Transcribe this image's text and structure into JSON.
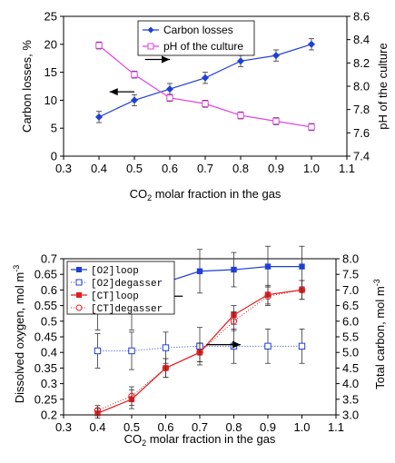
{
  "chart_data": [
    {
      "type": "line",
      "xlabel": "CO2 molar fraction in the gas",
      "ylabel": "Carbon losses, %",
      "y2label": "pH of the culture",
      "xlim": [
        0.3,
        1.1
      ],
      "ylim": [
        0,
        25
      ],
      "y2lim": [
        7.4,
        8.6
      ],
      "xticks": [
        "0.3",
        "0.4",
        "0.5",
        "0.6",
        "0.7",
        "0.8",
        "0.9",
        "1.0",
        "1.1"
      ],
      "yticks": [
        "0",
        "5",
        "10",
        "15",
        "20",
        "25"
      ],
      "y2ticks": [
        "7.4",
        "7.6",
        "7.8",
        "8.0",
        "8.2",
        "8.4",
        "8.6"
      ],
      "legend_position": "top-center",
      "series": [
        {
          "name": "Carbon losses",
          "axis": "left",
          "color": "#1f3fd6",
          "marker": "diamond",
          "x": [
            0.4,
            0.5,
            0.6,
            0.7,
            0.8,
            0.9,
            1.0
          ],
          "y": [
            7,
            10,
            12,
            14,
            17,
            18,
            20
          ],
          "err": [
            1,
            1,
            1,
            1,
            1,
            1,
            1
          ]
        },
        {
          "name": "pH of the culture",
          "axis": "right",
          "color": "#e040e0",
          "marker": "square-open",
          "x": [
            0.4,
            0.5,
            0.6,
            0.7,
            0.8,
            0.9,
            1.0
          ],
          "y": [
            8.35,
            8.1,
            7.9,
            7.85,
            7.75,
            7.7,
            7.65
          ],
          "err": [
            0.03,
            0.03,
            0.03,
            0.03,
            0.03,
            0.03,
            0.03
          ]
        }
      ],
      "arrows": [
        {
          "direction": "right",
          "x_from": 0.53,
          "x_to": 0.6,
          "y2": 8.23
        },
        {
          "direction": "left",
          "x_from": 0.5,
          "x_to": 0.43,
          "y": 11.5
        }
      ]
    },
    {
      "type": "line",
      "xlabel": "CO2 molar fraction in the gas",
      "ylabel": "Dissolved oxygen, mol m-3",
      "y2label": "Total carbon, mol m-3",
      "xlim": [
        0.3,
        1.1
      ],
      "ylim": [
        0.2,
        0.7
      ],
      "y2lim": [
        3.0,
        8.0
      ],
      "xticks": [
        "0.3",
        "0.4",
        "0.5",
        "0.6",
        "0.7",
        "0.8",
        "0.9",
        "1.0",
        "1.1"
      ],
      "yticks": [
        "0.2",
        "0.25",
        "0.3",
        "0.35",
        "0.4",
        "0.45",
        "0.5",
        "0.55",
        "0.6",
        "0.65",
        "0.7"
      ],
      "y2ticks": [
        "3.0",
        "3.5",
        "4.0",
        "4.5",
        "5.0",
        "5.5",
        "6.0",
        "6.5",
        "7.0",
        "7.5",
        "8.0"
      ],
      "legend_position": "top-left",
      "series": [
        {
          "name": "[O2]loop",
          "axis": "left",
          "color": "#1f3fd6",
          "marker": "square",
          "linestyle": "solid",
          "x": [
            0.4,
            0.5,
            0.6,
            0.7,
            0.8,
            0.9,
            1.0
          ],
          "y": [
            0.557,
            0.557,
            0.625,
            0.66,
            0.665,
            0.675,
            0.675
          ],
          "err": [
            0.085,
            0.085,
            0.06,
            0.07,
            0.055,
            0.065,
            0.065
          ]
        },
        {
          "name": "[O2]degasser",
          "axis": "left",
          "color": "#1f3fd6",
          "marker": "square-open",
          "linestyle": "dotted",
          "x": [
            0.4,
            0.5,
            0.6,
            0.7,
            0.8,
            0.9,
            1.0
          ],
          "y": [
            0.405,
            0.405,
            0.415,
            0.42,
            0.42,
            0.42,
            0.42
          ],
          "err": [
            0.055,
            0.06,
            0.05,
            0.06,
            0.055,
            0.055,
            0.055
          ]
        },
        {
          "name": "[CT]loop",
          "axis": "right",
          "color": "#e02020",
          "marker": "square",
          "linestyle": "solid",
          "x": [
            0.4,
            0.5,
            0.6,
            0.7,
            0.8,
            0.9,
            1.0
          ],
          "y": [
            3.05,
            3.5,
            4.5,
            5.0,
            6.2,
            6.85,
            7.0
          ],
          "err": [
            0.15,
            0.3,
            0.3,
            0.3,
            0.3,
            0.3,
            0.3
          ]
        },
        {
          "name": "[CT]degasser",
          "axis": "right",
          "color": "#e02020",
          "marker": "circle-open",
          "linestyle": "dotted",
          "x": [
            0.4,
            0.5,
            0.6,
            0.7,
            0.8,
            0.9,
            1.0
          ],
          "y": [
            3.15,
            3.6,
            4.5,
            5.0,
            6.0,
            6.8,
            7.0
          ],
          "err": [
            0.15,
            0.3,
            0.3,
            0.3,
            0.3,
            0.3,
            0.3
          ]
        }
      ],
      "arrows": [
        {
          "direction": "left",
          "x_from": 0.65,
          "x_to": 0.57,
          "y": 0.58
        },
        {
          "direction": "right",
          "x_from": 0.72,
          "x_to": 0.82,
          "y2": 5.25
        }
      ]
    }
  ]
}
